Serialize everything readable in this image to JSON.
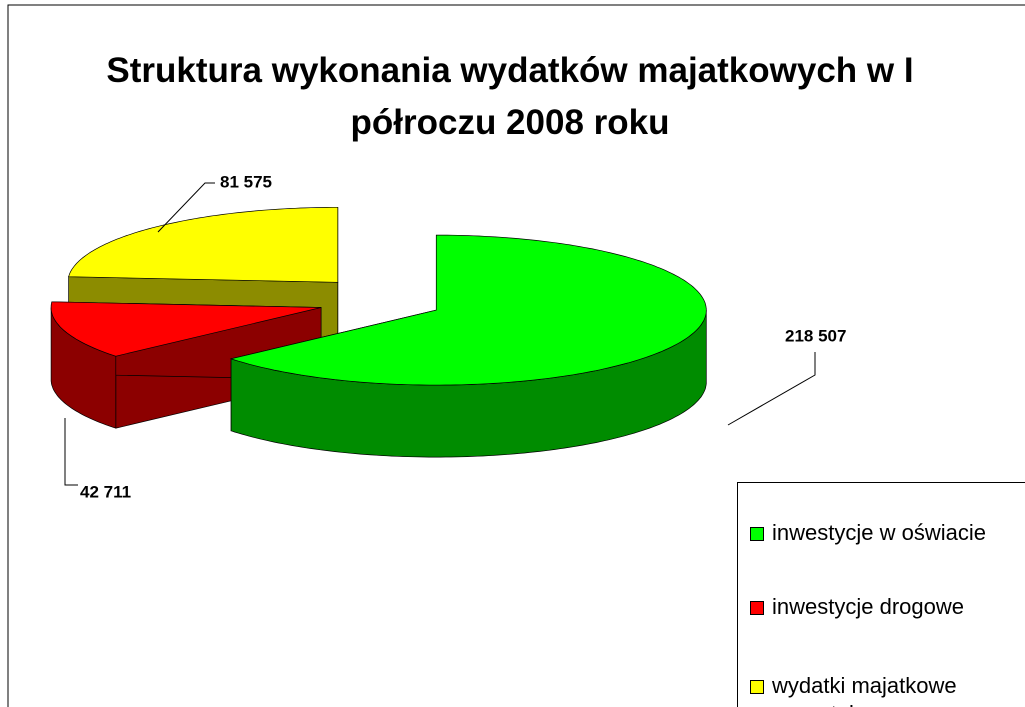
{
  "chart_data": {
    "type": "pie3d",
    "title": "Struktura wykonania wydatków majatkowych w I półroczu 2008 roku",
    "categories": [
      "inwestycje w oświacie",
      "inwestycje drogowe",
      "wydatki majatkowe pozostałe"
    ],
    "values": [
      218507,
      42711,
      81575
    ],
    "value_labels": [
      "218 507",
      "42 711",
      "81 575"
    ],
    "colors": [
      "#00ff00",
      "#ff0000",
      "#ffff00"
    ],
    "legend": "bottom-right"
  }
}
